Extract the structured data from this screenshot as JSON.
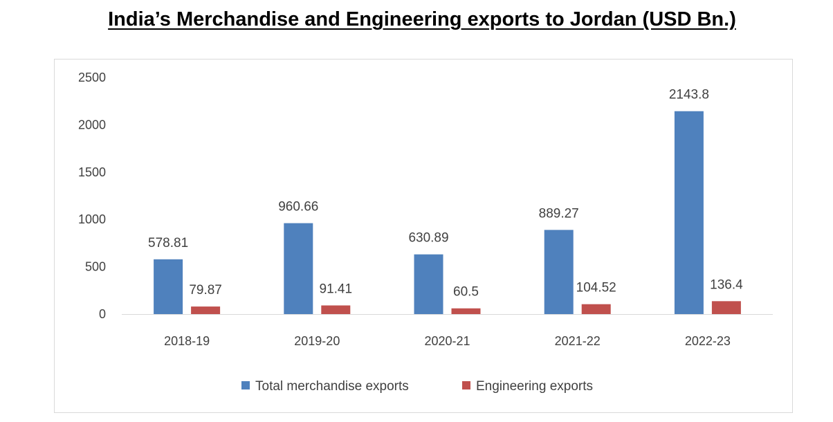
{
  "chart_data": {
    "type": "bar",
    "title": "India’s Merchandise and Engineering exports to Jordan (USD Bn.)",
    "categories": [
      "2018-19",
      "2019-20",
      "2020-21",
      "2021-22",
      "2022-23"
    ],
    "series": [
      {
        "name": "Total merchandise exports",
        "color": "#4F81BD",
        "values": [
          578.81,
          960.66,
          630.89,
          889.27,
          2143.8
        ],
        "labels": [
          "578.81",
          "960.66",
          "630.89",
          "889.27",
          "2143.8"
        ]
      },
      {
        "name": "Engineering exports",
        "color": "#C0504D",
        "values": [
          79.87,
          91.41,
          60.5,
          104.52,
          136.4
        ],
        "labels": [
          "79.87",
          "91.41",
          "60.5",
          "104.52",
          "136.4"
        ]
      }
    ],
    "yticks": [
      0,
      500,
      1000,
      1500,
      2000,
      2500
    ],
    "ylim": [
      0,
      2500
    ],
    "xlabel": "",
    "ylabel": "",
    "grid": false,
    "legend_position": "bottom"
  }
}
